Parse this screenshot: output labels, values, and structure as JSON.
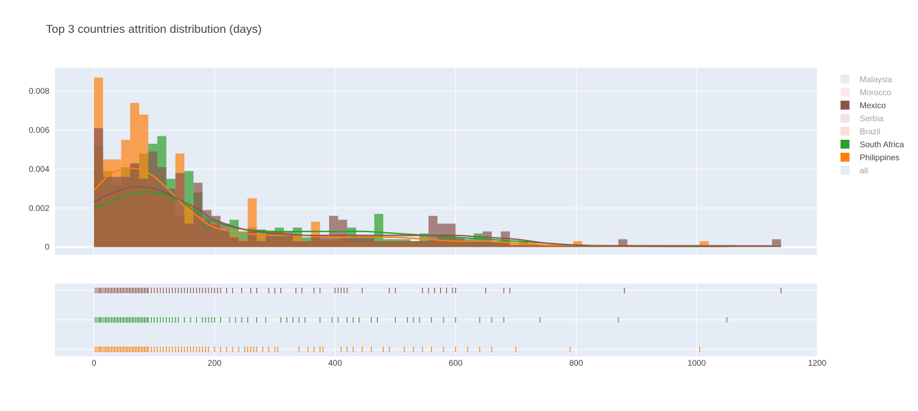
{
  "chart_data": {
    "type": "histogram",
    "title": "Top 3 countries attrition distribution (days)",
    "xlabel": "",
    "ylabel": "",
    "xlim": [
      -65,
      1200
    ],
    "ylim": [
      -0.0004,
      0.0092
    ],
    "x_ticks": [
      0,
      200,
      400,
      600,
      800,
      1000,
      1200
    ],
    "y_ticks": [
      0,
      0.002,
      0.004,
      0.006,
      0.008
    ],
    "y_tick_labels": [
      "0",
      "0.002",
      "0.004",
      "0.006",
      "0.008"
    ],
    "grid": true,
    "legend_position": "right",
    "bin_width": 15,
    "legend": [
      {
        "name": "Malaysia",
        "color": "#c7c7c7",
        "visible": false
      },
      {
        "name": "Morocco",
        "color": "#f7b6d2",
        "visible": false
      },
      {
        "name": "Mexico",
        "color": "#8c564b",
        "visible": true
      },
      {
        "name": "Serbia",
        "color": "#c5b0d5",
        "visible": false
      },
      {
        "name": "Brazil",
        "color": "#ff9896",
        "visible": false
      },
      {
        "name": "South Africa",
        "color": "#2ca02c",
        "visible": true
      },
      {
        "name": "Philippines",
        "color": "#ff7f0e",
        "visible": true
      },
      {
        "name": "all",
        "color": "#a6c8e6",
        "visible": false
      }
    ],
    "series": [
      {
        "name": "South Africa",
        "color": "#2ca02c",
        "bins": [
          0,
          15,
          30,
          45,
          60,
          75,
          90,
          105,
          120,
          135,
          150,
          165,
          180,
          195,
          210,
          225,
          240,
          255,
          270,
          285,
          300,
          315,
          330,
          345,
          360,
          375,
          390,
          405,
          420,
          435,
          450,
          465,
          480,
          495,
          510,
          525,
          540,
          555,
          570,
          585,
          600,
          615,
          630,
          645,
          660,
          675,
          690,
          705,
          720,
          735,
          750,
          765,
          780,
          795,
          810,
          825,
          840,
          855,
          870,
          885,
          900,
          915,
          930,
          945,
          960,
          975,
          990,
          1005,
          1020,
          1035,
          1050
        ],
        "values": [
          0.0052,
          0.0039,
          0.0032,
          0.0041,
          0.0042,
          0.0048,
          0.0053,
          0.0057,
          0.0035,
          0.0016,
          0.0039,
          0.0028,
          0.0014,
          0.0011,
          0.0009,
          0.0014,
          0.0008,
          0.001,
          0.0009,
          0.0007,
          0.001,
          0.0006,
          0.001,
          0.0005,
          0.0006,
          0.0003,
          0.0004,
          0.0005,
          0.001,
          0.0006,
          0.0006,
          0.0017,
          0.0004,
          0.0004,
          0.0004,
          0.0003,
          0.0007,
          0.0004,
          0.0006,
          0.0006,
          0.0004,
          0.0004,
          0.0007,
          0.0003,
          0.0003,
          0.0003,
          0.0001,
          0.0003,
          0.0001,
          0.0001,
          0.0001,
          0.0001,
          0.0001,
          0.0001,
          0.0001,
          0.0001,
          0.0001,
          0.0001,
          0.0001,
          0.0001,
          0.0001,
          0.0001,
          0.0001,
          0.0001,
          0.0001,
          0.0001,
          0.0001,
          0.0001,
          0.0001,
          0.0001,
          0.0001
        ],
        "kde_x": [
          0,
          25,
          50,
          75,
          100,
          125,
          150,
          175,
          200,
          250,
          300,
          350,
          400,
          450,
          500,
          550,
          600,
          650,
          700,
          750,
          800,
          850,
          900,
          950,
          1000,
          1050
        ],
        "kde_y": [
          0.002,
          0.0023,
          0.0026,
          0.0028,
          0.0028,
          0.0026,
          0.0022,
          0.0017,
          0.0013,
          0.0009,
          0.0008,
          0.0008,
          0.0008,
          0.0008,
          0.0007,
          0.0006,
          0.0005,
          0.0004,
          0.0003,
          0.0002,
          0.0001,
          5e-05,
          4e-05,
          3e-05,
          3e-05,
          3e-05
        ]
      },
      {
        "name": "Philippines",
        "color": "#ff7f0e",
        "bins": [
          0,
          15,
          30,
          45,
          60,
          75,
          90,
          105,
          120,
          135,
          150,
          165,
          180,
          195,
          210,
          225,
          240,
          255,
          270,
          285,
          300,
          315,
          330,
          345,
          360,
          375,
          390,
          405,
          420,
          435,
          450,
          465,
          480,
          495,
          510,
          525,
          540,
          555,
          570,
          585,
          600,
          615,
          630,
          645,
          660,
          675,
          690,
          705,
          720,
          735,
          750,
          765,
          780,
          795,
          810,
          825,
          840,
          855,
          870,
          885,
          900,
          915,
          930,
          945,
          960,
          975,
          990,
          1005,
          1020
        ],
        "values": [
          0.0087,
          0.0045,
          0.0045,
          0.0055,
          0.0074,
          0.0068,
          0.0036,
          0.0027,
          0.0027,
          0.0048,
          0.0022,
          0.0015,
          0.0009,
          0.0012,
          0.0007,
          0.0006,
          0.0004,
          0.0025,
          0.0006,
          0.0005,
          0.0005,
          0.0005,
          0.0006,
          0.0003,
          0.0013,
          0.0004,
          0.0004,
          0.0004,
          0.0003,
          0.0003,
          0.0003,
          0.0003,
          0.0003,
          0.0003,
          0.0003,
          0.0003,
          0.0003,
          0.0003,
          0.0003,
          0.0003,
          0.0003,
          0.0002,
          0.0002,
          0.0002,
          0.0002,
          0.0002,
          0.0002,
          0.0002,
          0.0002,
          0.0001,
          0.0001,
          0.0001,
          0.0001,
          0.0003,
          0.0001,
          0.0001,
          0.0001,
          0.0001,
          0.0001,
          0.0001,
          0.0001,
          0.0001,
          0.0001,
          0.0001,
          0.0001,
          0.0001,
          0.0001,
          0.0003,
          0.0001
        ],
        "kde_x": [
          0,
          25,
          50,
          75,
          100,
          125,
          150,
          175,
          200,
          250,
          300,
          350,
          400,
          450,
          500,
          550,
          600,
          650,
          700,
          750,
          800,
          850,
          900,
          950,
          1000,
          1050
        ],
        "kde_y": [
          0.0029,
          0.0037,
          0.004,
          0.004,
          0.0036,
          0.0029,
          0.0021,
          0.0015,
          0.001,
          0.0007,
          0.0006,
          0.0006,
          0.0005,
          0.0005,
          0.0005,
          0.0004,
          0.0003,
          0.0003,
          0.0002,
          0.0001,
          0.0001,
          5e-05,
          4e-05,
          4e-05,
          4e-05,
          3e-05
        ]
      },
      {
        "name": "Mexico",
        "color": "#8c564b",
        "bins": [
          0,
          15,
          30,
          45,
          60,
          75,
          90,
          105,
          120,
          135,
          150,
          165,
          180,
          195,
          210,
          225,
          240,
          255,
          270,
          285,
          300,
          315,
          330,
          345,
          360,
          375,
          390,
          405,
          420,
          435,
          450,
          465,
          480,
          495,
          510,
          525,
          540,
          555,
          570,
          585,
          600,
          615,
          630,
          645,
          660,
          675,
          690,
          705,
          720,
          735,
          750,
          765,
          780,
          795,
          810,
          825,
          840,
          855,
          870,
          885,
          900,
          915,
          930,
          945,
          960,
          975,
          990,
          1005,
          1020,
          1035,
          1050,
          1065,
          1080,
          1095,
          1110,
          1125
        ],
        "values": [
          0.0061,
          0.0036,
          0.0036,
          0.0036,
          0.0043,
          0.0035,
          0.0049,
          0.0041,
          0.003,
          0.0038,
          0.0012,
          0.0033,
          0.0019,
          0.0016,
          0.0012,
          0.0005,
          0.0003,
          0.0008,
          0.0003,
          0.0008,
          0.0008,
          0.0008,
          0.0003,
          0.0003,
          0.0005,
          0.0005,
          0.0016,
          0.0014,
          0.0005,
          0.0005,
          0.0005,
          0.0003,
          0.0003,
          0.0003,
          0.0003,
          0.0003,
          0.0003,
          0.0016,
          0.0012,
          0.0012,
          0.0005,
          0.0003,
          0.0003,
          0.0008,
          0.0003,
          0.0008,
          0.0001,
          0.0001,
          0.0001,
          0.0001,
          0.0001,
          0.0001,
          0.0001,
          0.0001,
          0.0001,
          0.0001,
          0.0001,
          0.0001,
          0.0004,
          0.0001,
          0.0001,
          0.0001,
          0.0001,
          0.0001,
          0.0001,
          0.0001,
          0.0001,
          0.0001,
          0.0001,
          0.0001,
          0.0001,
          0.0001,
          0.0001,
          0.0001,
          0.0001,
          0.0004
        ],
        "kde_x": [
          0,
          25,
          50,
          75,
          100,
          125,
          150,
          175,
          200,
          250,
          300,
          350,
          400,
          450,
          500,
          550,
          600,
          650,
          700,
          750,
          800,
          850,
          900,
          950,
          1000,
          1050,
          1100,
          1140
        ],
        "kde_y": [
          0.0023,
          0.0027,
          0.003,
          0.0031,
          0.003,
          0.0027,
          0.0023,
          0.0019,
          0.0014,
          0.0009,
          0.0007,
          0.0006,
          0.0006,
          0.0006,
          0.0006,
          0.0006,
          0.0006,
          0.0005,
          0.0004,
          0.0002,
          0.0001,
          6e-05,
          5e-05,
          4e-05,
          4e-05,
          4e-05,
          4e-05,
          4e-05
        ]
      }
    ],
    "rugs": [
      {
        "name": "Mexico",
        "color": "#8c564b",
        "values": [
          2,
          5,
          8,
          10,
          12,
          15,
          18,
          20,
          23,
          25,
          28,
          30,
          33,
          35,
          38,
          40,
          43,
          45,
          48,
          50,
          53,
          55,
          58,
          60,
          63,
          65,
          68,
          70,
          73,
          75,
          78,
          80,
          83,
          85,
          88,
          90,
          95,
          100,
          105,
          110,
          115,
          120,
          125,
          130,
          135,
          140,
          145,
          150,
          155,
          160,
          165,
          170,
          175,
          180,
          185,
          190,
          195,
          200,
          205,
          210,
          220,
          230,
          245,
          260,
          270,
          290,
          300,
          310,
          335,
          345,
          365,
          375,
          400,
          405,
          410,
          415,
          420,
          445,
          490,
          500,
          545,
          555,
          565,
          575,
          585,
          595,
          600,
          650,
          680,
          690,
          880,
          1140
        ]
      },
      {
        "name": "South Africa",
        "color": "#2ca02c",
        "values": [
          2,
          5,
          8,
          10,
          12,
          15,
          18,
          20,
          23,
          25,
          28,
          30,
          33,
          35,
          38,
          40,
          43,
          45,
          48,
          50,
          53,
          55,
          58,
          60,
          63,
          65,
          68,
          70,
          73,
          75,
          78,
          80,
          83,
          85,
          88,
          90,
          95,
          100,
          105,
          110,
          115,
          120,
          125,
          130,
          135,
          140,
          150,
          160,
          170,
          180,
          185,
          190,
          195,
          200,
          210,
          225,
          235,
          245,
          255,
          270,
          285,
          310,
          320,
          330,
          340,
          350,
          375,
          395,
          405,
          420,
          430,
          440,
          460,
          470,
          500,
          520,
          530,
          540,
          560,
          580,
          600,
          640,
          660,
          680,
          740,
          870,
          1050
        ]
      },
      {
        "name": "Philippines",
        "color": "#ff7f0e",
        "values": [
          2,
          5,
          8,
          10,
          12,
          15,
          18,
          20,
          23,
          25,
          28,
          30,
          33,
          35,
          38,
          40,
          43,
          45,
          48,
          50,
          53,
          55,
          58,
          60,
          63,
          65,
          68,
          70,
          73,
          75,
          78,
          80,
          83,
          85,
          88,
          90,
          95,
          100,
          105,
          110,
          115,
          120,
          125,
          130,
          135,
          140,
          145,
          150,
          155,
          160,
          165,
          170,
          175,
          180,
          185,
          190,
          200,
          210,
          220,
          230,
          240,
          250,
          255,
          260,
          265,
          270,
          280,
          290,
          300,
          305,
          340,
          355,
          365,
          375,
          380,
          410,
          420,
          430,
          445,
          460,
          480,
          490,
          515,
          530,
          545,
          560,
          580,
          600,
          620,
          640,
          660,
          700,
          790,
          1005
        ]
      }
    ]
  }
}
